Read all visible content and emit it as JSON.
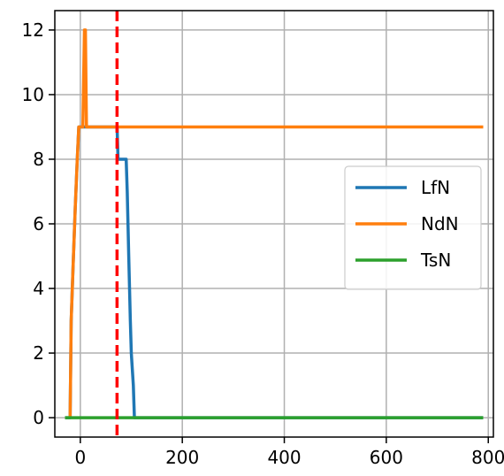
{
  "chart_data": {
    "type": "line",
    "title": "",
    "xlabel": "",
    "ylabel": "",
    "xlim": [
      -50,
      810
    ],
    "ylim": [
      -0.6,
      12.6
    ],
    "xticks": [
      0,
      200,
      400,
      600,
      800
    ],
    "yticks": [
      0,
      2,
      4,
      6,
      8,
      10,
      12
    ],
    "grid": true,
    "legend_position": "center-right",
    "vline": {
      "x": 72,
      "color": "#ff0000",
      "style": "dashed"
    },
    "series": [
      {
        "name": "LfN",
        "color": "#1f77b4",
        "points": [
          [
            -30,
            0
          ],
          [
            -20,
            0
          ],
          [
            -18,
            3
          ],
          [
            -14,
            4.8
          ],
          [
            -10,
            6.5
          ],
          [
            -6,
            8
          ],
          [
            -3,
            9
          ],
          [
            20,
            9
          ],
          [
            40,
            9
          ],
          [
            72,
            9
          ],
          [
            74,
            8
          ],
          [
            90,
            8
          ],
          [
            92,
            7
          ],
          [
            95,
            5
          ],
          [
            98,
            3
          ],
          [
            100,
            2
          ],
          [
            104,
            1
          ],
          [
            106,
            0
          ],
          [
            300,
            0
          ],
          [
            550,
            0
          ],
          [
            790,
            0
          ]
        ]
      },
      {
        "name": "NdN",
        "color": "#ff7f0e",
        "points": [
          [
            -20,
            0
          ],
          [
            -18,
            3
          ],
          [
            -14,
            4.8
          ],
          [
            -10,
            6.5
          ],
          [
            -6,
            8
          ],
          [
            -3,
            9
          ],
          [
            5,
            9
          ],
          [
            8,
            12
          ],
          [
            10,
            12
          ],
          [
            12,
            9
          ],
          [
            100,
            9
          ],
          [
            300,
            9
          ],
          [
            550,
            9
          ],
          [
            790,
            9
          ]
        ]
      },
      {
        "name": "TsN",
        "color": "#2ca02c",
        "points": [
          [
            -30,
            0
          ],
          [
            100,
            0
          ],
          [
            300,
            0
          ],
          [
            550,
            0
          ],
          [
            790,
            0
          ]
        ]
      }
    ]
  }
}
